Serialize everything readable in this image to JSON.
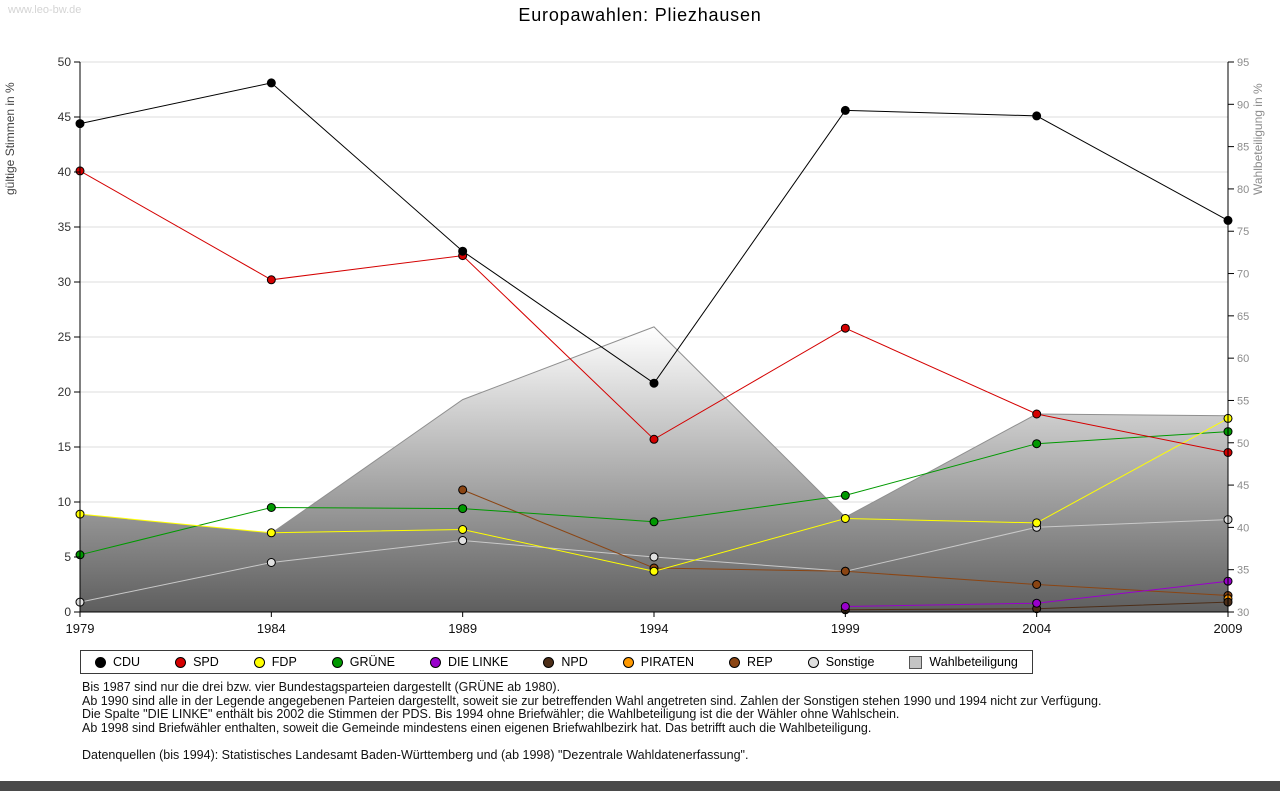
{
  "watermark": "www.leo-bw.de",
  "title": "Europawahlen:  Pliezhausen",
  "chart_data": {
    "type": "line",
    "x_categories": [
      "1979",
      "1984",
      "1989",
      "1994",
      "1999",
      "2004",
      "2009"
    ],
    "ylabel_left": "gültige Stimmen in %",
    "ylabel_right": "Wahlbeteiligung in %",
    "ylim_left": [
      0,
      50
    ],
    "ylim_right": [
      30,
      95
    ],
    "ytick_step": 5,
    "grid": true,
    "legend_position": "bottom",
    "series": [
      {
        "name": "CDU",
        "color": "#000000",
        "axis": "left",
        "type": "line",
        "values": [
          44.4,
          48.1,
          32.8,
          20.8,
          45.6,
          45.1,
          35.6
        ]
      },
      {
        "name": "SPD",
        "color": "#d40000",
        "axis": "left",
        "type": "line",
        "values": [
          40.1,
          30.2,
          32.4,
          15.7,
          25.8,
          18.0,
          14.5
        ]
      },
      {
        "name": "FDP",
        "color": "#ffff00",
        "axis": "left",
        "type": "line",
        "values": [
          8.9,
          7.2,
          7.5,
          3.7,
          8.5,
          8.1,
          17.6
        ]
      },
      {
        "name": "GRÜNE",
        "color": "#009900",
        "axis": "left",
        "type": "line",
        "values": [
          5.2,
          9.5,
          9.4,
          8.2,
          10.6,
          15.3,
          16.4
        ]
      },
      {
        "name": "DIE LINKE",
        "color": "#9900cc",
        "axis": "left",
        "type": "line",
        "values": [
          null,
          null,
          null,
          null,
          0.5,
          0.8,
          2.8
        ]
      },
      {
        "name": "NPD",
        "color": "#4d2e18",
        "axis": "left",
        "type": "line",
        "values": [
          null,
          null,
          null,
          null,
          0.2,
          0.3,
          0.9
        ]
      },
      {
        "name": "PIRATEN",
        "color": "#ff9900",
        "axis": "left",
        "type": "line",
        "values": [
          null,
          null,
          null,
          null,
          null,
          null,
          1.2
        ]
      },
      {
        "name": "REP",
        "color": "#8b4513",
        "axis": "left",
        "type": "line",
        "values": [
          null,
          null,
          11.1,
          4.0,
          3.7,
          2.5,
          1.5
        ]
      },
      {
        "name": "Sonstige",
        "color": "#c9c9c9",
        "marker_fill": "#e0e0e0",
        "axis": "left",
        "type": "line",
        "values": [
          0.9,
          4.5,
          6.5,
          5.0,
          3.7,
          7.7,
          8.4
        ]
      },
      {
        "name": "Wahlbeteiligung",
        "color": "#8f8f8f",
        "axis": "right",
        "type": "area",
        "gradient": [
          "#ffffff",
          "#5e5e5e"
        ],
        "swatch": "#c4c4c4",
        "values": [
          41.5,
          39.3,
          55.1,
          63.7,
          41.2,
          53.4,
          53.2
        ]
      }
    ]
  },
  "footnotes": [
    "Bis 1987 sind nur die drei bzw. vier Bundestagsparteien dargestellt (GRÜNE ab 1980).",
    "Ab 1990 sind alle in der Legende angegebenen Parteien dargestellt, soweit sie zur betreffenden Wahl angetreten sind. Zahlen der Sonstigen stehen 1990 und 1994 nicht zur Verfügung.",
    "Die Spalte \"DIE LINKE\" enthält bis 2002 die Stimmen der PDS. Bis 1994 ohne Briefwähler; die Wahlbeteiligung ist die der Wähler ohne Wahlschein.",
    "Ab 1998 sind Briefwähler enthalten, soweit die Gemeinde mindestens einen eigenen Briefwahlbezirk hat. Das betrifft auch die Wahlbeteiligung."
  ],
  "source": "Datenquellen (bis 1994): Statistisches Landesamt Baden-Württemberg und (ab 1998) \"Dezentrale Wahldatenerfassung\"."
}
